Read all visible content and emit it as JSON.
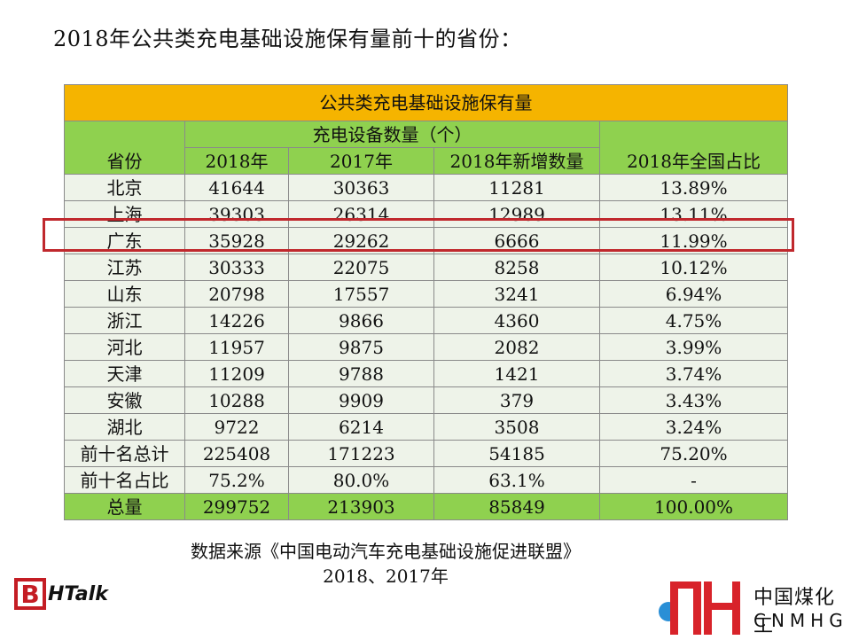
{
  "page_title": "2018年公共类充电基础设施保有量前十的省份：",
  "source_line1": "数据来源《中国电动汽车充电基础设施促进联盟》",
  "source_line2": "2018、2017年",
  "logo_left": {
    "mark": "B",
    "text": "HTalk"
  },
  "logo_right": {
    "cn": "中国煤化工",
    "en": "CNMHG"
  },
  "colors": {
    "banner": "#f5b400",
    "header": "#8fd14f",
    "row": "#eef3e9",
    "highlight": "#c0282d"
  },
  "chart_data": {
    "type": "table",
    "title": "公共类充电基础设施保有量",
    "group_header": "充电设备数量（个）",
    "columns": [
      "省份",
      "2018年",
      "2017年",
      "2018年新增数量",
      "2018年全国占比"
    ],
    "rows": [
      [
        "北京",
        "41644",
        "30363",
        "11281",
        "13.89%"
      ],
      [
        "上海",
        "39303",
        "26314",
        "12989",
        "13.11%"
      ],
      [
        "广东",
        "35928",
        "29262",
        "6666",
        "11.99%"
      ],
      [
        "江苏",
        "30333",
        "22075",
        "8258",
        "10.12%"
      ],
      [
        "山东",
        "20798",
        "17557",
        "3241",
        "6.94%"
      ],
      [
        "浙江",
        "14226",
        "9866",
        "4360",
        "4.75%"
      ],
      [
        "河北",
        "11957",
        "9875",
        "2082",
        "3.99%"
      ],
      [
        "天津",
        "11209",
        "9788",
        "1421",
        "3.74%"
      ],
      [
        "安徽",
        "10288",
        "9909",
        "379",
        "3.43%"
      ],
      [
        "湖北",
        "9722",
        "6214",
        "3508",
        "3.24%"
      ],
      [
        "前十名总计",
        "225408",
        "171223",
        "54185",
        "75.20%"
      ],
      [
        "前十名占比",
        "75.2%",
        "80.0%",
        "63.1%",
        "-"
      ],
      [
        "总量",
        "299752",
        "213903",
        "85849",
        "100.00%"
      ]
    ],
    "highlighted_row": "广东"
  }
}
